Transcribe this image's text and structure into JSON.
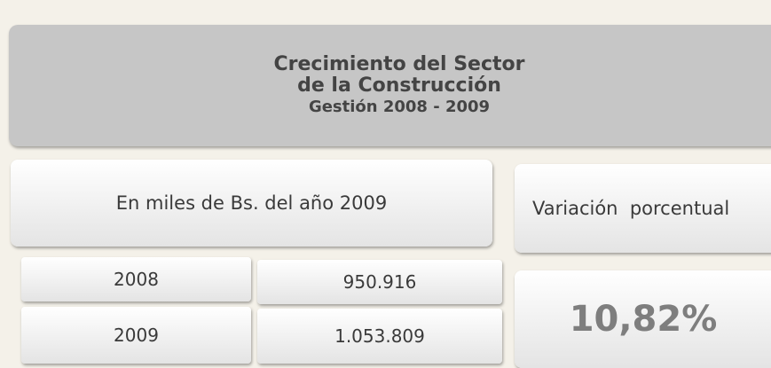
{
  "header": {
    "title_lines": [
      "Crecimiento del Sector",
      "de la Construcción",
      "Gestión 2008 - 2009"
    ]
  },
  "unit_label": "En miles de Bs. del año 2009",
  "variation_label": "Variación  porcentual",
  "rows": [
    {
      "year": "2008",
      "value": "950.916"
    },
    {
      "year": "2009",
      "value": "1.053.809"
    }
  ],
  "variation_value": "10,82%"
}
